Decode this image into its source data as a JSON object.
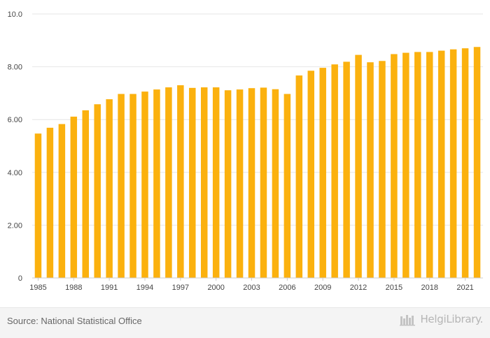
{
  "chart_data": {
    "type": "bar",
    "categories": [
      "1985",
      "1986",
      "1987",
      "1988",
      "1989",
      "1990",
      "1991",
      "1992",
      "1993",
      "1994",
      "1995",
      "1996",
      "1997",
      "1998",
      "1999",
      "2000",
      "2001",
      "2002",
      "2003",
      "2004",
      "2005",
      "2006",
      "2007",
      "2008",
      "2009",
      "2010",
      "2011",
      "2012",
      "2013",
      "2014",
      "2015",
      "2016",
      "2017",
      "2018",
      "2019",
      "2020",
      "2021",
      "2022"
    ],
    "values": [
      5.47,
      5.69,
      5.83,
      6.11,
      6.35,
      6.58,
      6.77,
      6.97,
      6.97,
      7.06,
      7.14,
      7.22,
      7.3,
      7.2,
      7.22,
      7.22,
      7.11,
      7.14,
      7.19,
      7.21,
      7.15,
      6.97,
      7.67,
      7.85,
      7.96,
      8.09,
      8.19,
      8.45,
      8.17,
      8.22,
      8.48,
      8.53,
      8.56,
      8.56,
      8.61,
      8.66,
      8.7,
      8.75
    ],
    "x_tick_labels": [
      "1985",
      "1988",
      "1991",
      "1994",
      "1997",
      "2000",
      "2003",
      "2006",
      "2009",
      "2012",
      "2015",
      "2018",
      "2021"
    ],
    "y_tick_labels": [
      "0",
      "2.00",
      "4.00",
      "6.00",
      "8.00",
      "10.0"
    ],
    "ylim": [
      0,
      10
    ],
    "bar_color": "#FBB10E",
    "grid": true,
    "title": "",
    "xlabel": "",
    "ylabel": ""
  },
  "footer": {
    "source": "Source: National Statistical Office",
    "brand": "HelgiLibrary."
  }
}
